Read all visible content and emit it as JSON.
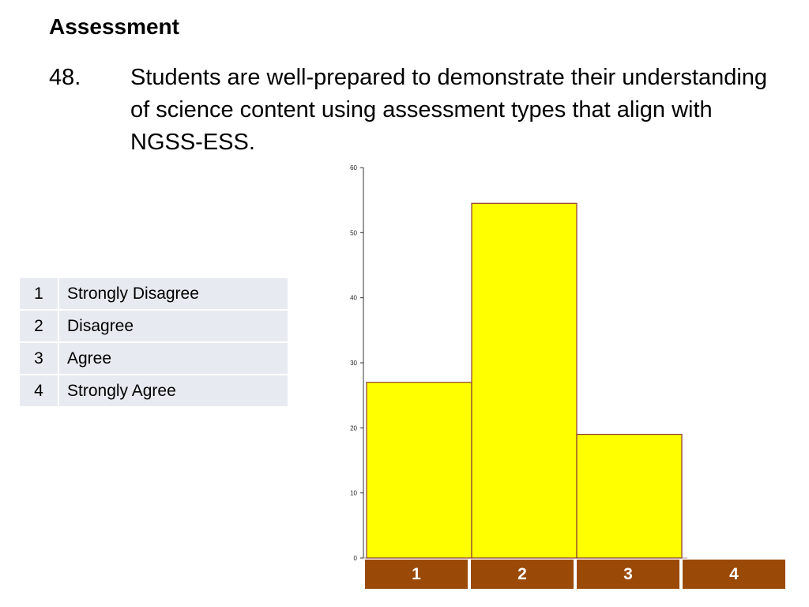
{
  "header": {
    "section_title": "Assessment",
    "question_number": "48.",
    "question_text": "Students are well-prepared to demonstrate their understanding of science content using assessment types that align with NGSS-ESS."
  },
  "legend_table": [
    {
      "code": "1",
      "label": "Strongly Disagree"
    },
    {
      "code": "2",
      "label": "Disagree"
    },
    {
      "code": "3",
      "label": "Agree"
    },
    {
      "code": "4",
      "label": "Strongly Agree"
    }
  ],
  "colors": {
    "bar_fill": "#ffff00",
    "bar_stroke": "#8a3a3a",
    "category_box": "#9a4906",
    "legend_row": "#e8eaf1"
  },
  "chart_data": {
    "type": "bar",
    "title": "",
    "xlabel": "",
    "ylabel": "",
    "categories": [
      "1",
      "2",
      "3",
      "4"
    ],
    "values": [
      27,
      54.5,
      19,
      0
    ],
    "ylim": [
      0,
      60
    ],
    "yticks": [
      "0",
      "10",
      "20",
      "30",
      "40",
      "50",
      "60"
    ],
    "grid": false
  }
}
